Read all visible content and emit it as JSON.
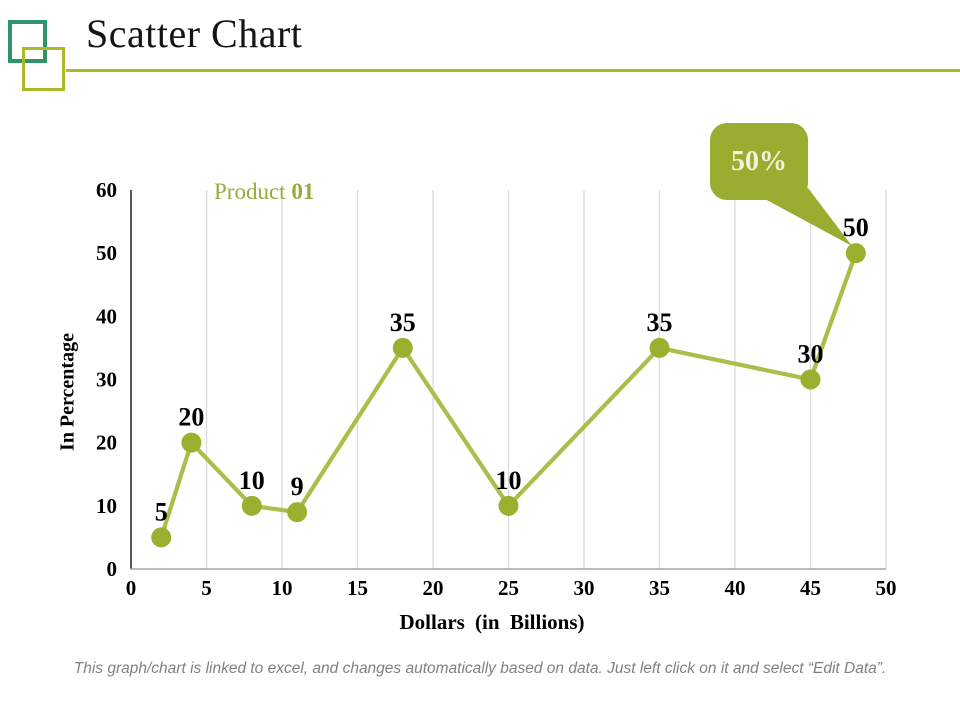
{
  "slide": {
    "title": "Scatter Chart",
    "footer_note": "This graph/chart is linked to excel, and changes automatically based on data. Just left click on it and select “Edit Data”."
  },
  "chart_data": {
    "type": "scatter",
    "series": [
      {
        "name": "Product 01",
        "points": [
          {
            "x": 2,
            "y": 5,
            "label": "5"
          },
          {
            "x": 4,
            "y": 20,
            "label": "20"
          },
          {
            "x": 8,
            "y": 10,
            "label": "10"
          },
          {
            "x": 11,
            "y": 9,
            "label": "9"
          },
          {
            "x": 18,
            "y": 35,
            "label": "35"
          },
          {
            "x": 25,
            "y": 10,
            "label": "10"
          },
          {
            "x": 35,
            "y": 35,
            "label": "35"
          },
          {
            "x": 45,
            "y": 30,
            "label": "30"
          },
          {
            "x": 48,
            "y": 50,
            "label": "50"
          }
        ]
      }
    ],
    "series_label": {
      "prefix": "Product ",
      "number": "01"
    },
    "xlabel": "Dollars (in Billions)",
    "ylabel": "In Percentage",
    "xlim": [
      0,
      50
    ],
    "ylim": [
      0,
      60
    ],
    "x_ticks": [
      0,
      5,
      10,
      15,
      20,
      25,
      30,
      35,
      40,
      45,
      50
    ],
    "y_ticks": [
      0,
      10,
      20,
      30,
      40,
      50,
      60
    ],
    "grid": "vertical-only",
    "legend_position": "none",
    "callout": {
      "label": "50%",
      "points_to": {
        "x": 48,
        "y": 50
      }
    },
    "colors": {
      "line": "#A8C04A",
      "marker": "#9AB02F",
      "callout_bg": "#9AAD31",
      "callout_text": "#F0F3D8",
      "series_label": "#94AB3D",
      "gridline": "#D9D9D9",
      "y_axis_line": "#595959",
      "x_axis_line": "#A6A6A6",
      "accent_teal": "#2F9469",
      "accent_olive": "#ACBA28"
    }
  }
}
